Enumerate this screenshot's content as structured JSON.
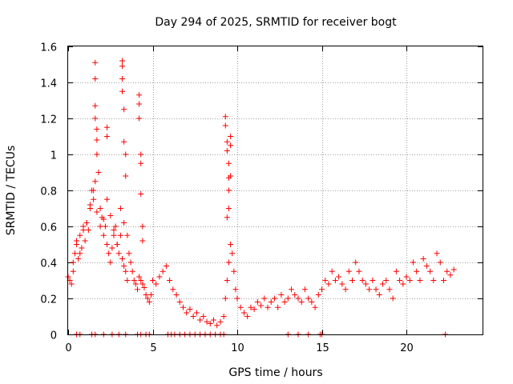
{
  "chart_data": {
    "type": "scatter",
    "title": "Day 294 of 2025, SRMTID for receiver bogt",
    "xlabel": "GPS time / hours",
    "ylabel": "SRMTID / TECUs",
    "xlim": [
      0,
      24.5
    ],
    "ylim": [
      0,
      1.6
    ],
    "xticks": [
      0,
      5,
      10,
      15,
      20
    ],
    "xtick_labels": [
      "0",
      "5",
      "10",
      "15",
      "20"
    ],
    "yticks": [
      0,
      0.2,
      0.4,
      0.6,
      0.8,
      1.0,
      1.2,
      1.4,
      1.6
    ],
    "ytick_labels": [
      "0",
      "0.2",
      "0.4",
      "0.6",
      "0.8",
      "1",
      "1.2",
      "1.4",
      "1.6"
    ],
    "grid": true,
    "marker": "plus",
    "color": "#ff0000",
    "series": [
      {
        "name": "SRMTID",
        "x": [
          0.0,
          0.1,
          0.2,
          0.3,
          0.4,
          0.5,
          0.6,
          0.7,
          0.8,
          0.9,
          1.0,
          1.1,
          1.2,
          1.3,
          1.4,
          1.5,
          1.6,
          1.7,
          1.8,
          1.9,
          2.0,
          2.1,
          2.2,
          2.3,
          2.4,
          2.5,
          2.6,
          2.7,
          2.8,
          2.9,
          3.0,
          3.1,
          3.2,
          3.3,
          3.4,
          3.5,
          3.6,
          3.7,
          3.8,
          3.9,
          4.0,
          4.1,
          4.2,
          4.3,
          4.4,
          4.5,
          4.6,
          4.7,
          4.8,
          4.9,
          5.0,
          5.2,
          5.4,
          5.6,
          5.8,
          6.0,
          6.2,
          6.4,
          6.6,
          6.8,
          7.0,
          7.2,
          7.4,
          7.6,
          7.8,
          8.0,
          8.2,
          8.4,
          8.6,
          8.8,
          9.0,
          9.2,
          9.3,
          9.4,
          9.5,
          9.6,
          9.7,
          9.8,
          9.9,
          10.0,
          10.2,
          10.4,
          10.6,
          10.8,
          11.0,
          11.2,
          11.4,
          11.6,
          11.8,
          12.0,
          12.2,
          12.4,
          12.6,
          12.8,
          13.0,
          13.2,
          13.4,
          13.6,
          13.8,
          14.0,
          14.2,
          14.4,
          14.6,
          14.8,
          15.0,
          15.2,
          15.4,
          15.6,
          15.8,
          16.0,
          16.2,
          16.4,
          16.6,
          16.8,
          17.0,
          17.2,
          17.4,
          17.6,
          17.8,
          18.0,
          18.2,
          18.4,
          18.6,
          18.8,
          19.0,
          19.2,
          19.4,
          19.6,
          19.8,
          20.0,
          20.2,
          20.4,
          20.6,
          20.8,
          21.0,
          21.2,
          21.4,
          21.6,
          21.8,
          22.0,
          22.2,
          22.4,
          22.6,
          22.8,
          0.3,
          0.5,
          0.7,
          0.9,
          1.1,
          1.3,
          1.5,
          1.7,
          1.9,
          2.1,
          2.3,
          2.5,
          2.7,
          2.9,
          3.1,
          3.3,
          3.5,
          1.6,
          1.6,
          1.6,
          1.6,
          1.7,
          1.7,
          2.3,
          2.3,
          3.2,
          3.2,
          3.2,
          3.2,
          3.3,
          3.3,
          3.4,
          3.4,
          4.2,
          4.2,
          4.2,
          4.3,
          4.3,
          4.3,
          4.4,
          4.4,
          9.3,
          9.3,
          9.4,
          9.4,
          9.5,
          9.5,
          9.5,
          9.6,
          9.6,
          9.6,
          9.5,
          9.4,
          0.5,
          0.7,
          1.4,
          1.6,
          2.1,
          2.6,
          3.0,
          3.4,
          4.1,
          4.3,
          4.6,
          4.8,
          5.9,
          6.1,
          6.3,
          6.6,
          6.9,
          7.2,
          7.5,
          7.8,
          8.1,
          8.4,
          8.7,
          9.0,
          9.2,
          13.0,
          13.6,
          14.2,
          14.9,
          15.0,
          22.3
        ],
        "y": [
          0.32,
          0.3,
          0.28,
          0.35,
          0.45,
          0.5,
          0.42,
          0.55,
          0.48,
          0.6,
          0.52,
          0.62,
          0.58,
          0.7,
          0.8,
          0.75,
          0.85,
          1.0,
          0.9,
          0.7,
          0.65,
          0.55,
          0.6,
          0.5,
          0.45,
          0.4,
          0.48,
          0.55,
          0.6,
          0.5,
          0.45,
          0.55,
          0.42,
          0.38,
          0.35,
          0.3,
          0.45,
          0.4,
          0.35,
          0.3,
          0.28,
          0.25,
          0.32,
          0.3,
          0.28,
          0.26,
          0.22,
          0.2,
          0.18,
          0.22,
          0.3,
          0.28,
          0.32,
          0.35,
          0.38,
          0.3,
          0.25,
          0.22,
          0.18,
          0.15,
          0.12,
          0.14,
          0.1,
          0.12,
          0.08,
          0.1,
          0.07,
          0.06,
          0.08,
          0.05,
          0.07,
          0.1,
          0.2,
          0.3,
          0.4,
          0.5,
          0.45,
          0.35,
          0.25,
          0.2,
          0.15,
          0.12,
          0.1,
          0.15,
          0.14,
          0.18,
          0.16,
          0.2,
          0.15,
          0.18,
          0.2,
          0.15,
          0.22,
          0.18,
          0.2,
          0.25,
          0.22,
          0.2,
          0.18,
          0.25,
          0.2,
          0.18,
          0.15,
          0.22,
          0.25,
          0.3,
          0.28,
          0.35,
          0.3,
          0.32,
          0.28,
          0.25,
          0.35,
          0.3,
          0.4,
          0.35,
          0.3,
          0.28,
          0.25,
          0.3,
          0.25,
          0.22,
          0.28,
          0.3,
          0.25,
          0.2,
          0.35,
          0.3,
          0.28,
          0.32,
          0.3,
          0.4,
          0.35,
          0.3,
          0.42,
          0.38,
          0.35,
          0.3,
          0.45,
          0.4,
          0.3,
          0.35,
          0.33,
          0.36,
          0.4,
          0.52,
          0.45,
          0.58,
          0.62,
          0.72,
          0.8,
          0.68,
          0.6,
          0.64,
          0.75,
          0.66,
          0.58,
          0.5,
          0.7,
          0.62,
          0.55,
          1.27,
          1.51,
          1.42,
          1.2,
          1.14,
          1.08,
          1.15,
          1.1,
          1.52,
          1.49,
          1.42,
          1.35,
          1.25,
          1.07,
          1.0,
          0.88,
          1.33,
          1.28,
          1.2,
          1.0,
          0.95,
          0.78,
          0.6,
          0.52,
          1.21,
          1.16,
          1.07,
          1.02,
          0.95,
          0.87,
          0.8,
          1.1,
          1.05,
          0.88,
          0.7,
          0.65,
          0.0,
          0.0,
          0.0,
          0.0,
          0.0,
          0.0,
          0.0,
          0.0,
          0.0,
          0.0,
          0.0,
          0.0,
          0.0,
          0.0,
          0.0,
          0.0,
          0.0,
          0.0,
          0.0,
          0.0,
          0.0,
          0.0,
          0.0,
          0.0,
          0.0,
          0.0,
          0.0,
          0.0,
          0.0,
          0.0,
          0.0
        ]
      }
    ]
  }
}
